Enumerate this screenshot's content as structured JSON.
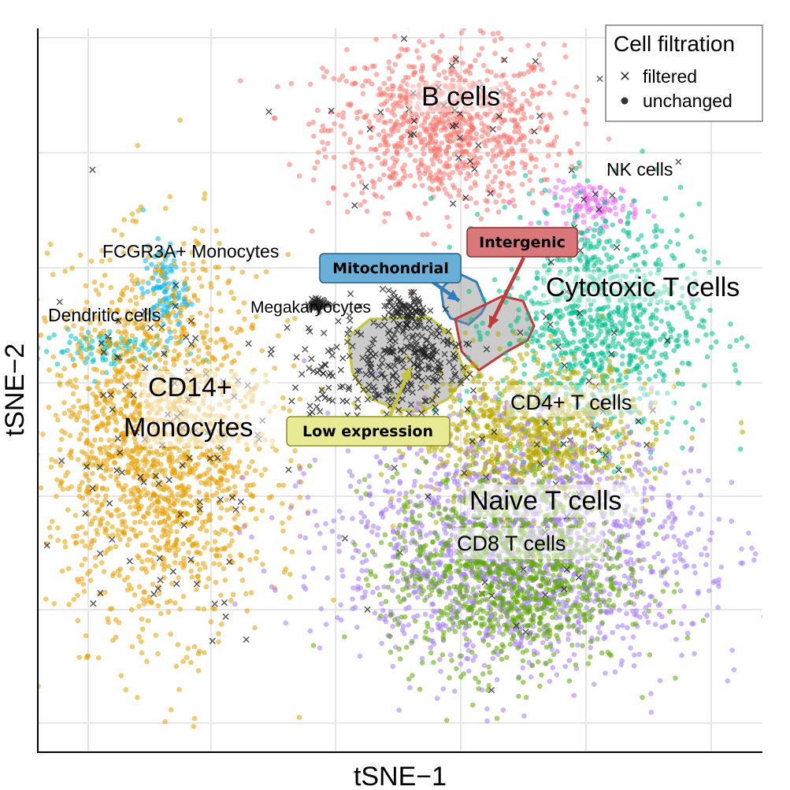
{
  "chart_data": {
    "type": "scatter",
    "title": "",
    "xlabel": "tSNE−1",
    "ylabel": "tSNE−2",
    "xlim": [
      -40,
      40
    ],
    "ylim": [
      -40,
      40
    ],
    "grid": true,
    "legend": {
      "title": "Cell filtration",
      "position": "top-right",
      "entries": [
        {
          "label": "filtered",
          "shape": "cross"
        },
        {
          "label": "unchanged",
          "shape": "dot"
        }
      ]
    },
    "clusters": [
      {
        "name": "B cells",
        "color": "#F8766D",
        "center": [
          5.0,
          29.0
        ],
        "spread": [
          6.5,
          4.5
        ],
        "count": 950,
        "filtered": 38
      },
      {
        "name": "NK cells",
        "color": "#E76BF3",
        "center": [
          21.5,
          20.5
        ],
        "spread": [
          2.5,
          1.2
        ],
        "count": 110,
        "filtered": 5
      },
      {
        "name": "Cytotoxic T cells",
        "color": "#00C08B",
        "center": [
          22.0,
          7.5
        ],
        "spread": [
          5.5,
          6.5
        ],
        "count": 900,
        "filtered": 18
      },
      {
        "name": "FCGR3A+ Monocytes",
        "color": "#00B4EF",
        "center": [
          -26.0,
          11.0
        ],
        "spread": [
          1.2,
          2.5
        ],
        "count": 110,
        "filtered": 3
      },
      {
        "name": "Dendritic cells",
        "color": "#00BFC4",
        "center": [
          -33.0,
          4.5
        ],
        "spread": [
          3.5,
          1.2
        ],
        "count": 90,
        "filtered": 2
      },
      {
        "name": "CD14+ Monocytes",
        "color": "#E69F00",
        "center": [
          -26.5,
          -6.0
        ],
        "spread": [
          6.0,
          10.0
        ],
        "count": 1700,
        "filtered": 95
      },
      {
        "name": "CD4+ T cells",
        "color": "#B8A800",
        "center": [
          14.5,
          -5.0
        ],
        "spread": [
          6.5,
          4.0
        ],
        "count": 900,
        "filtered": 22
      },
      {
        "name": "Naive T cells",
        "color": "#A47CF5",
        "center": [
          13.0,
          -17.5
        ],
        "spread": [
          10.0,
          6.5
        ],
        "count": 1600,
        "filtered": 15
      },
      {
        "name": "CD8 T cells",
        "color": "#5CA800",
        "center": [
          12.0,
          -20.0
        ],
        "spread": [
          6.5,
          5.5
        ],
        "count": 1100,
        "filtered": 10
      },
      {
        "name": "Megakaryocytes",
        "color": "#222222",
        "center": [
          -9.0,
          9.5
        ],
        "spread": [
          0.6,
          0.3
        ],
        "count": 30,
        "filtered": 20
      },
      {
        "name": "Low expression",
        "color": "#333333",
        "center": [
          -3.5,
          2.0
        ],
        "spread": [
          4.5,
          3.5
        ],
        "count": 0,
        "filtered": 180
      },
      {
        "name": "Mitochondrial",
        "color": "#222222",
        "center": [
          0.5,
          8.5
        ],
        "spread": [
          1.2,
          1.2
        ],
        "count": 0,
        "filtered": 90
      },
      {
        "name": "Intergenic",
        "color": "#222222",
        "center": [
          3.0,
          3.5
        ],
        "spread": [
          2.5,
          2.0
        ],
        "count": 0,
        "filtered": 120
      }
    ],
    "cluster_labels": [
      {
        "text": "B cells",
        "at": [
          5.0,
          30.5
        ]
      },
      {
        "text": "NK cells",
        "at": [
          20.0,
          22.5
        ]
      },
      {
        "text": "FCGR3A+ Monocytes",
        "at": [
          -20.0,
          14.0
        ]
      },
      {
        "text": "Cytotoxic T cells",
        "at": [
          22.0,
          10.0
        ]
      },
      {
        "text": "Megakaryocytes",
        "at": [
          -13.0,
          7.5
        ]
      },
      {
        "text": "Dendritic cells",
        "at": [
          -34.0,
          6.5
        ]
      },
      {
        "text": "CD14+",
        "at": [
          -28.0,
          -1.0
        ]
      },
      {
        "text": "Monocytes",
        "at": [
          -28.0,
          -5.0
        ]
      },
      {
        "text": "CD4+ T cells",
        "at": [
          13.0,
          -3.5
        ]
      },
      {
        "text": "Naive T cells",
        "at": [
          11.0,
          -13.5
        ]
      },
      {
        "text": "CD8 T cells",
        "at": [
          8.0,
          -17.5
        ]
      }
    ],
    "annotations": [
      {
        "text": "Intergenic",
        "fill": "#D9777A",
        "stroke": "#8B2E2E",
        "region": "intergenic"
      },
      {
        "text": "Mitochondrial",
        "fill": "#6AAFD8",
        "stroke": "#1E5F8A",
        "region": "mitochondrial"
      },
      {
        "text": "Low expression",
        "fill": "#E8EA94",
        "stroke": "#8E8E2A",
        "region": "low-expression"
      }
    ],
    "region_colors": {
      "intergenic": "#C0393B",
      "mitochondrial": "#2E7EBE",
      "low-expression": "#C6C63A"
    }
  }
}
